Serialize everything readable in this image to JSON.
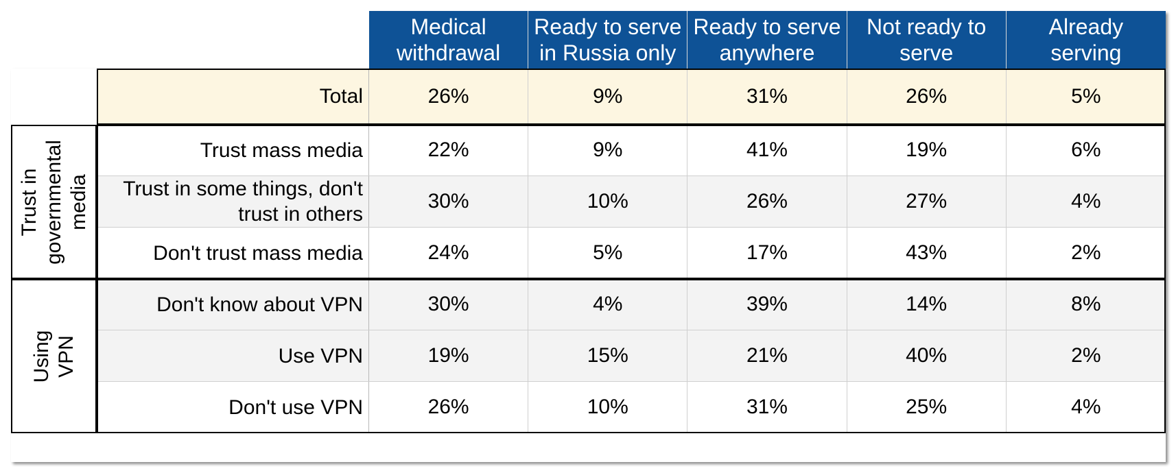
{
  "chart_data": {
    "type": "table",
    "columns": [
      "Medical\nwithdrawal",
      "Ready to serve\nin Russia only",
      "Ready to serve\nanywhere",
      "Not ready to\nserve",
      "Already\nserving"
    ],
    "total": {
      "label": "Total",
      "values": [
        "26%",
        "9%",
        "31%",
        "26%",
        "5%"
      ]
    },
    "groups": [
      {
        "label": "Trust in\ngovernmental\nmedia",
        "rows": [
          {
            "label": "Trust mass media",
            "values": [
              "22%",
              "9%",
              "41%",
              "19%",
              "6%"
            ]
          },
          {
            "label": "Trust in some things, don't\ntrust in others",
            "values": [
              "30%",
              "10%",
              "26%",
              "27%",
              "4%"
            ]
          },
          {
            "label": "Don't trust mass media",
            "values": [
              "24%",
              "5%",
              "17%",
              "43%",
              "2%"
            ]
          }
        ]
      },
      {
        "label": "Using VPN",
        "rows": [
          {
            "label": "Don't know about VPN",
            "values": [
              "30%",
              "4%",
              "39%",
              "14%",
              "8%"
            ]
          },
          {
            "label": "Use VPN",
            "values": [
              "19%",
              "15%",
              "21%",
              "40%",
              "2%"
            ]
          },
          {
            "label": "Don't use VPN",
            "values": [
              "26%",
              "10%",
              "31%",
              "25%",
              "4%"
            ]
          }
        ]
      }
    ]
  },
  "colors": {
    "header_bg": "#0e5296",
    "header_text": "#ffffff",
    "total_bg": "#fdf6e1",
    "shaded_row_bg": "#f3f3f3"
  }
}
